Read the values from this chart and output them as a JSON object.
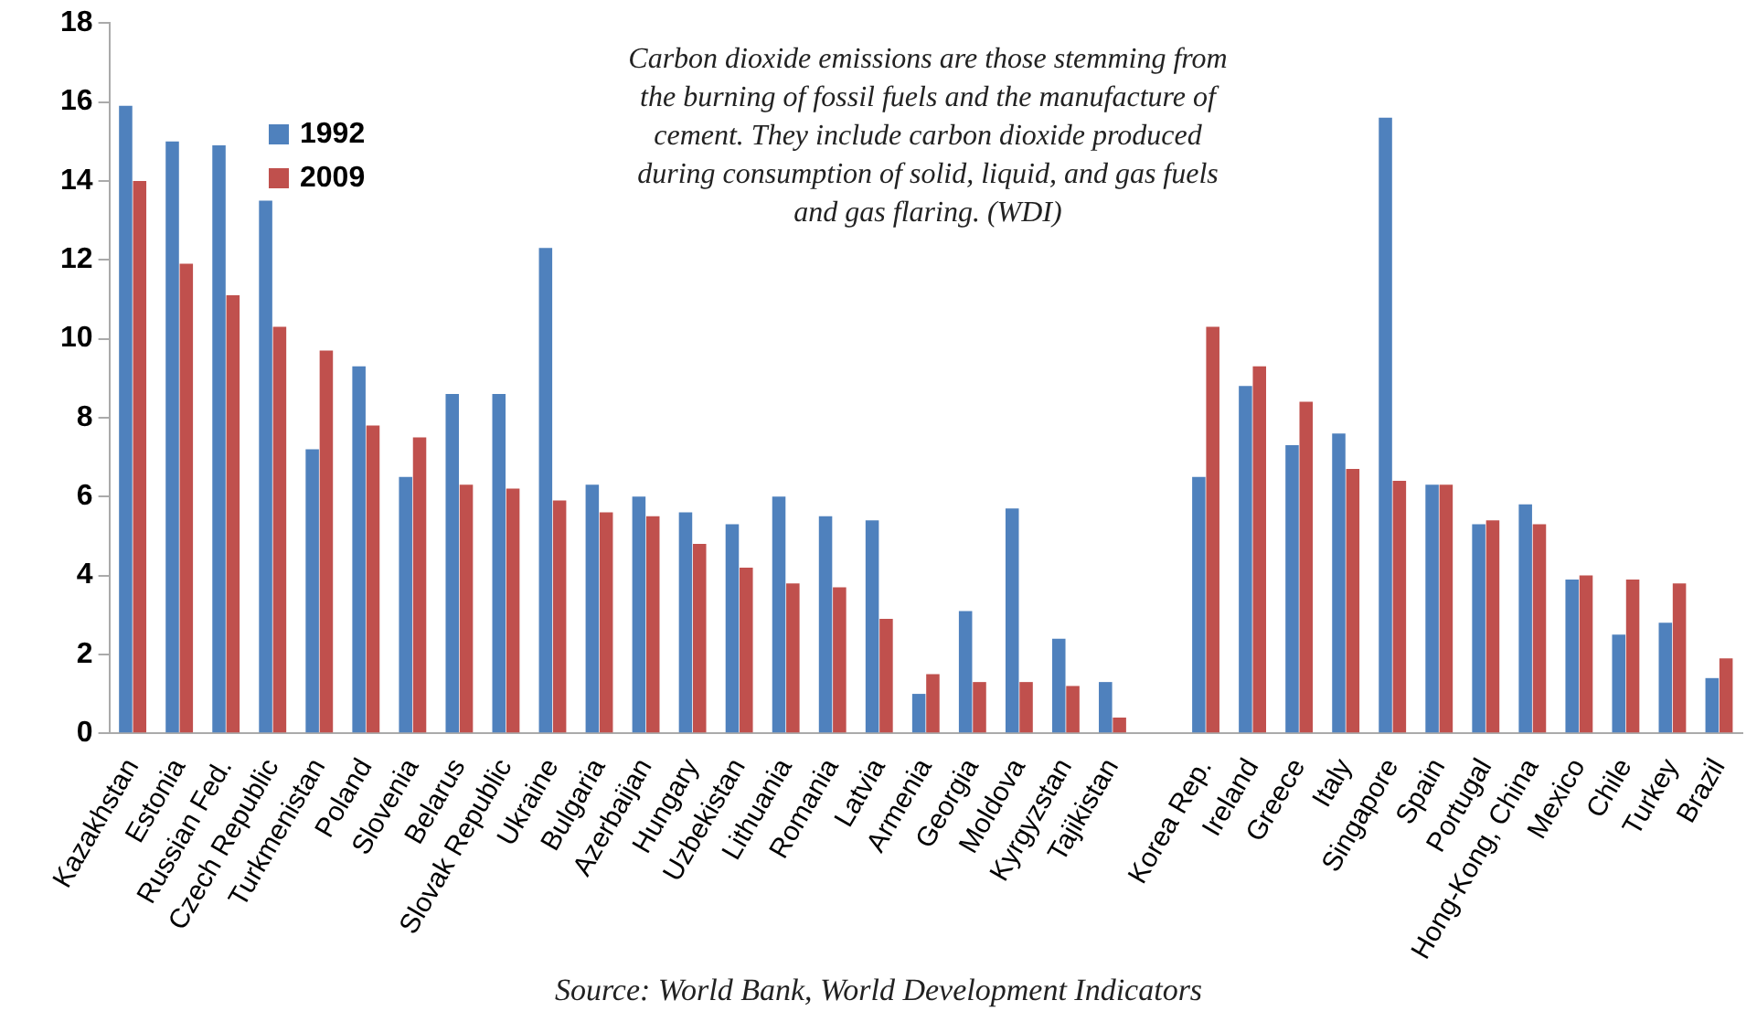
{
  "chart_data": {
    "type": "bar",
    "categories": [
      "Kazakhstan",
      "Estonia",
      "Russian Fed.",
      "Czech Republic",
      "Turkmenistan",
      "Poland",
      "Slovenia",
      "Belarus",
      "Slovak Republic",
      "Ukraine",
      "Bulgaria",
      "Azerbaijan",
      "Hungary",
      "Uzbekistan",
      "Lithuania",
      "Romania",
      "Latvia",
      "Armenia",
      "Georgia",
      "Moldova",
      "Kyrgyzstan",
      "Tajikistan",
      null,
      "Korea Rep.",
      "Ireland",
      "Greece",
      "Italy",
      "Singapore",
      "Spain",
      "Portugal",
      "Hong-Kong, China",
      "Mexico",
      "Chile",
      "Turkey",
      "Brazil"
    ],
    "series": [
      {
        "name": "1992",
        "color": "#4f81bd",
        "values": [
          15.9,
          15.0,
          14.9,
          13.5,
          7.2,
          9.3,
          6.5,
          8.6,
          8.6,
          12.3,
          6.3,
          6.0,
          5.6,
          5.3,
          6.0,
          5.5,
          5.4,
          1.0,
          3.1,
          5.7,
          2.4,
          1.3,
          null,
          6.5,
          8.8,
          7.3,
          7.6,
          15.6,
          6.3,
          5.3,
          5.8,
          3.9,
          2.5,
          2.8,
          1.4
        ]
      },
      {
        "name": "2009",
        "color": "#c0504d",
        "values": [
          14.0,
          11.9,
          11.1,
          10.3,
          9.7,
          7.8,
          7.5,
          6.3,
          6.2,
          5.9,
          5.6,
          5.5,
          4.8,
          4.2,
          3.8,
          3.7,
          2.9,
          1.5,
          1.3,
          1.3,
          1.2,
          0.4,
          null,
          10.3,
          9.3,
          8.4,
          6.7,
          6.4,
          6.3,
          5.4,
          5.3,
          4.0,
          3.9,
          3.8,
          1.9
        ]
      }
    ],
    "ylim": [
      0,
      18
    ],
    "yticks": [
      0,
      2,
      4,
      6,
      8,
      10,
      12,
      14,
      16,
      18
    ],
    "grid": false,
    "legend": "top left",
    "annotations": [
      "Carbon dioxide emissions are those stemming from the burning of fossil fuels and the manufacture of cement. They include carbon dioxide produced during consumption of solid, liquid, and gas fuels and gas flaring. (WDI)",
      "Source: World Bank, World Development Indicators"
    ]
  }
}
